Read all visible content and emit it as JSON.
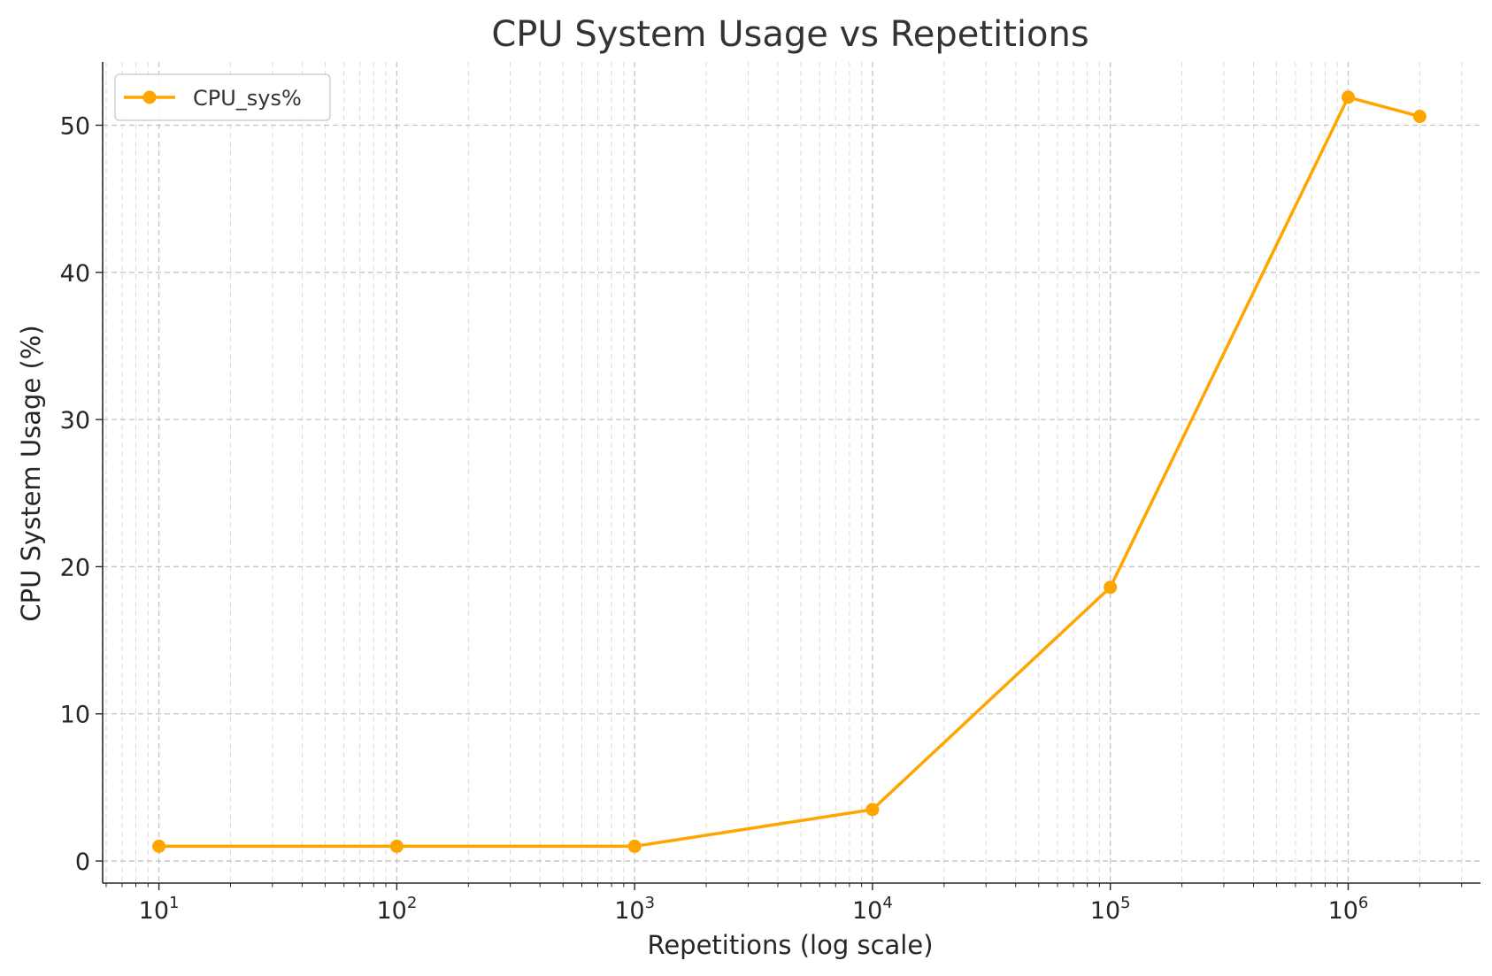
{
  "chart_data": {
    "type": "line",
    "title": "CPU System Usage vs Repetitions",
    "xlabel": "Repetitions (log scale)",
    "ylabel": "CPU System Usage (%)",
    "x_scale": "log",
    "xlim": [
      5.8,
      3600000
    ],
    "ylim": [
      -1.5,
      54.3
    ],
    "x_ticks": [
      {
        "value": 10,
        "base": "10",
        "exp": "1"
      },
      {
        "value": 100,
        "base": "10",
        "exp": "2"
      },
      {
        "value": 1000,
        "base": "10",
        "exp": "3"
      },
      {
        "value": 10000,
        "base": "10",
        "exp": "4"
      },
      {
        "value": 100000,
        "base": "10",
        "exp": "5"
      },
      {
        "value": 1000000,
        "base": "10",
        "exp": "6"
      }
    ],
    "y_ticks": [
      0,
      10,
      20,
      30,
      40,
      50
    ],
    "grid": true,
    "grid_minor": true,
    "legend_position": "top-left",
    "series": [
      {
        "name": "CPU_sys%",
        "color": "#FFA500",
        "marker": "circle",
        "x": [
          10,
          100,
          1000,
          10000,
          100000,
          1000000,
          2000000
        ],
        "y": [
          1.0,
          1.0,
          1.0,
          3.5,
          18.6,
          51.9,
          50.6
        ]
      }
    ]
  }
}
